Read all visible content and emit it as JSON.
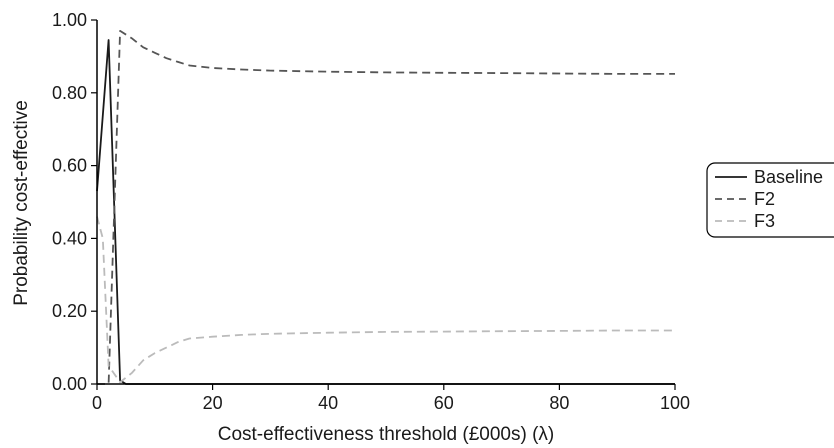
{
  "chart_data": {
    "type": "line",
    "xlabel": "Cost-effectiveness threshold (£000s) (λ)",
    "ylabel": "Probability cost-effective",
    "xlim": [
      0,
      100
    ],
    "ylim": [
      0,
      1
    ],
    "x_ticks": [
      0,
      20,
      40,
      60,
      80,
      100
    ],
    "y_ticks": [
      0,
      0.2,
      0.4,
      0.6,
      0.8,
      1.0
    ],
    "x_tick_labels": [
      "0",
      "20",
      "40",
      "60",
      "80",
      "100"
    ],
    "y_tick_labels": [
      "0.00",
      "0.20",
      "0.40",
      "0.60",
      "0.80",
      "1.00"
    ],
    "grid": false,
    "legend_position": "right",
    "series": [
      {
        "name": "Baseline",
        "color": "#1a1a1a",
        "dash": "solid",
        "x": [
          0,
          2,
          4,
          5,
          100
        ],
        "y": [
          0.53,
          0.945,
          0.01,
          0,
          0
        ]
      },
      {
        "name": "F2",
        "color": "#555555",
        "dash": "dashed",
        "x": [
          0,
          2,
          4,
          6,
          8,
          10,
          12,
          14,
          16,
          20,
          25,
          30,
          40,
          50,
          60,
          70,
          80,
          90,
          100
        ],
        "y": [
          0,
          0,
          0.97,
          0.95,
          0.925,
          0.91,
          0.895,
          0.885,
          0.875,
          0.868,
          0.864,
          0.861,
          0.858,
          0.856,
          0.855,
          0.854,
          0.853,
          0.852,
          0.852
        ]
      },
      {
        "name": "F3",
        "color": "#bbbbbb",
        "dash": "dashed",
        "x": [
          0,
          1,
          2,
          4,
          6,
          8,
          10,
          12,
          14,
          16,
          20,
          25,
          30,
          40,
          50,
          60,
          70,
          80,
          90,
          100
        ],
        "y": [
          0.46,
          0.4,
          0.05,
          0.005,
          0.03,
          0.065,
          0.085,
          0.1,
          0.115,
          0.125,
          0.13,
          0.135,
          0.138,
          0.141,
          0.143,
          0.144,
          0.145,
          0.146,
          0.147,
          0.147
        ]
      }
    ]
  }
}
